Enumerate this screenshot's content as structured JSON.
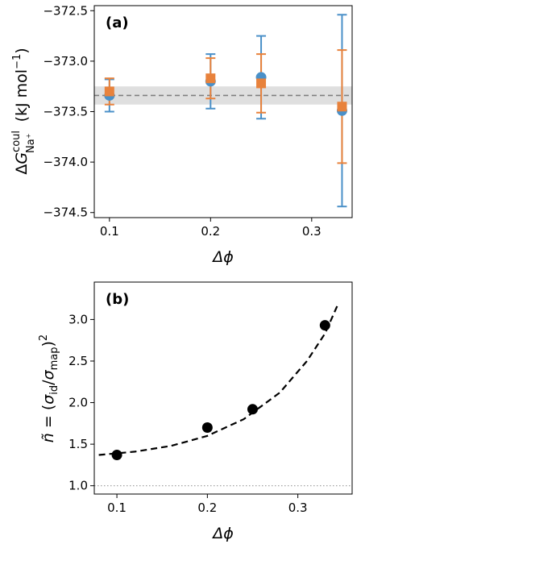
{
  "chart_data": [
    {
      "type": "scatter",
      "panel_label": "(a)",
      "xlabel": "Δϕ",
      "ylabel": "ΔG coul Na+ (kJ mol−1)",
      "xlim": [
        0.085,
        0.34
      ],
      "ylim": [
        -374.55,
        -372.45
      ],
      "x_ticks": [
        0.1,
        0.2,
        0.3
      ],
      "x_tick_labels": [
        "0.1",
        "0.2",
        "0.3"
      ],
      "y_ticks": [
        -372.5,
        -373.0,
        -373.5,
        -374.0,
        -374.5
      ],
      "y_tick_labels": [
        "−372.5",
        "−373.0",
        "−373.5",
        "−374.0",
        "−374.5"
      ],
      "reference": {
        "value": -373.34,
        "band": [
          -373.43,
          -373.25
        ]
      },
      "series": [
        {
          "marker": "circle",
          "color": "#4a90c8",
          "points": [
            {
              "x": 0.1,
              "y": -373.34,
              "err": 0.16
            },
            {
              "x": 0.2,
              "y": -373.2,
              "err": 0.27
            },
            {
              "x": 0.25,
              "y": -373.16,
              "err": 0.41
            },
            {
              "x": 0.33,
              "y": -373.49,
              "err": 0.95
            }
          ]
        },
        {
          "marker": "square",
          "color": "#e8823c",
          "points": [
            {
              "x": 0.1,
              "y": -373.3,
              "err": 0.13
            },
            {
              "x": 0.2,
              "y": -373.17,
              "err": 0.2
            },
            {
              "x": 0.25,
              "y": -373.22,
              "err": 0.29
            },
            {
              "x": 0.33,
              "y": -373.45,
              "err": 0.56
            }
          ]
        }
      ]
    },
    {
      "type": "scatter",
      "panel_label": "(b)",
      "xlabel": "Δϕ",
      "ylabel": "ñ = (σid/σmap)2",
      "xlim": [
        0.075,
        0.36
      ],
      "ylim": [
        0.9,
        3.45
      ],
      "x_ticks": [
        0.1,
        0.2,
        0.3
      ],
      "x_tick_labels": [
        "0.1",
        "0.2",
        "0.3"
      ],
      "y_ticks": [
        1.0,
        1.5,
        2.0,
        2.5,
        3.0
      ],
      "y_tick_labels": [
        "1.0",
        "1.5",
        "2.0",
        "2.5",
        "3.0"
      ],
      "reference_line": 1.0,
      "series": [
        {
          "marker": "circle",
          "color": "#000000",
          "points": [
            {
              "x": 0.1,
              "y": 1.37
            },
            {
              "x": 0.2,
              "y": 1.7
            },
            {
              "x": 0.25,
              "y": 1.92
            },
            {
              "x": 0.33,
              "y": 2.93
            }
          ]
        }
      ],
      "fit_curve": {
        "style": "dashed",
        "color": "#000000",
        "points": [
          {
            "x": 0.08,
            "y": 1.37
          },
          {
            "x": 0.12,
            "y": 1.41
          },
          {
            "x": 0.16,
            "y": 1.48
          },
          {
            "x": 0.2,
            "y": 1.6
          },
          {
            "x": 0.24,
            "y": 1.8
          },
          {
            "x": 0.28,
            "y": 2.12
          },
          {
            "x": 0.31,
            "y": 2.5
          },
          {
            "x": 0.33,
            "y": 2.83
          },
          {
            "x": 0.345,
            "y": 3.2
          }
        ]
      }
    }
  ]
}
